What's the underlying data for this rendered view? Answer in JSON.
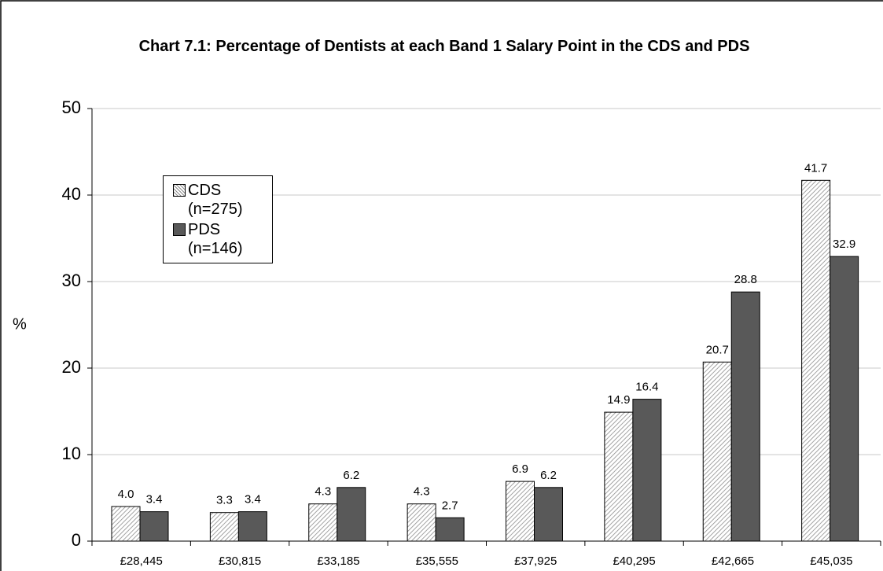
{
  "chart_data": {
    "type": "bar",
    "title": "Chart 7.1: Percentage of Dentists at each Band 1 Salary Point in the CDS and PDS",
    "y_label": "%",
    "categories": [
      "£28,445",
      "£30,815",
      "£33,185",
      "£35,555",
      "£37,925",
      "£40,295",
      "£42,665",
      "£45,035"
    ],
    "series": [
      {
        "name": "CDS (n=275)",
        "color": "#8c8c8c",
        "pattern": "diagonal-hatch",
        "values": [
          4.0,
          3.3,
          4.3,
          4.3,
          6.9,
          14.9,
          20.7,
          41.7
        ],
        "value_labels": [
          "4.0",
          "3.3",
          "4.3",
          "4.3",
          "6.9",
          "14.9",
          "20.7",
          "41.7"
        ]
      },
      {
        "name": "PDS (n=146)",
        "color": "#595959",
        "values": [
          3.4,
          3.4,
          6.2,
          2.7,
          6.2,
          16.4,
          28.8,
          32.9
        ],
        "value_labels": [
          "3.4",
          "3.4",
          "6.2",
          "2.7",
          "6.2",
          "16.4",
          "28.8",
          "32.9"
        ]
      }
    ],
    "ylim": [
      0,
      50
    ],
    "yticks": [
      0,
      10,
      20,
      30,
      40,
      50
    ],
    "grid": true
  }
}
